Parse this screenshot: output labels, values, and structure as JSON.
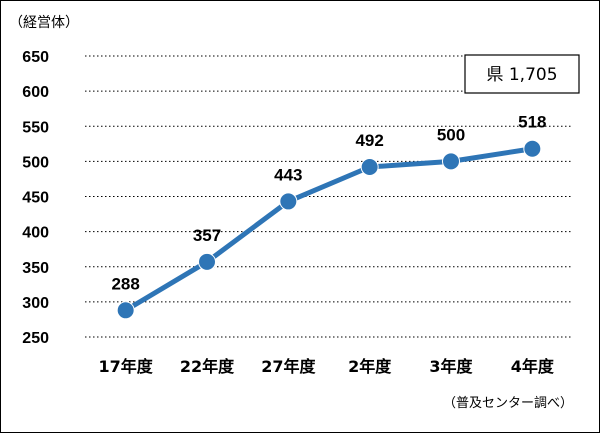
{
  "chart_data": {
    "type": "line",
    "unit_label": "（経営体）",
    "categories": [
      "17年度",
      "22年度",
      "27年度",
      "2年度",
      "3年度",
      "4年度"
    ],
    "series": [
      {
        "values": [
          288,
          357,
          443,
          492,
          500,
          518
        ]
      }
    ],
    "ylim": [
      250,
      650
    ],
    "yticks": [
      650,
      600,
      550,
      500,
      450,
      400,
      350,
      300,
      250
    ],
    "grid": true,
    "legend": "none",
    "annotation": "県 1,705",
    "source": "（普及センター調べ）",
    "line_color": "#2E75B6",
    "marker_color": "#2E75B6"
  }
}
